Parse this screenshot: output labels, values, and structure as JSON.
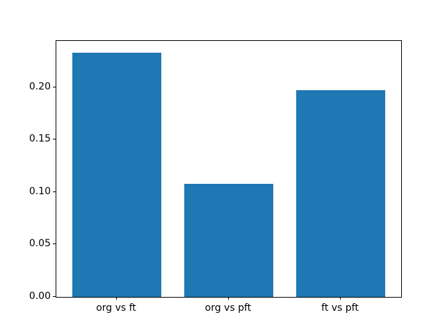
{
  "chart_data": {
    "type": "bar",
    "title": "",
    "categories": [
      "org vs ft",
      "org vs pft",
      "ft vs pft"
    ],
    "values": [
      0.233,
      0.108,
      0.197
    ],
    "bar_color": "#1f77b4",
    "yticks": [
      0.0,
      0.05,
      0.1,
      0.15,
      0.2
    ],
    "ytick_labels": [
      "0.00",
      "0.05",
      "0.10",
      "0.15",
      "0.20"
    ],
    "ylim": [
      0,
      0.244
    ],
    "xlim": [
      -0.54,
      2.54
    ],
    "bar_width": 0.8,
    "bar_centers": [
      0,
      1,
      2
    ],
    "grid": false,
    "legend_position": "none",
    "spine_color": "#000000",
    "background_color": "#ffffff"
  }
}
